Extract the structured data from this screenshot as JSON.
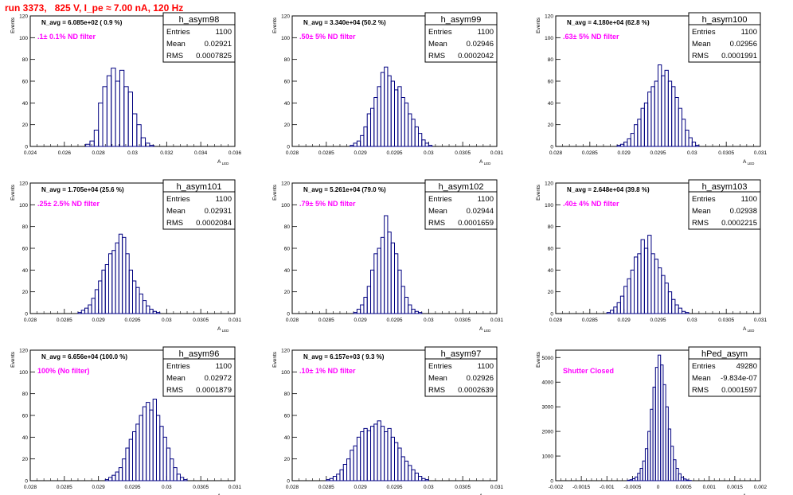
{
  "title": "run 3373,   825 V, I_pe ≈ 7.00 nA, 120 Hz",
  "ylabel": "Events",
  "xlabel": "A_{LED}",
  "stat_labels": [
    "Entries",
    "Mean",
    "RMS"
  ],
  "hist_color": "#000080",
  "note_color": "#ff00ff",
  "chart_data": [
    {
      "type": "bar",
      "name": "h_asym98",
      "navg": "N_avg = 6.085e+02 ( 0.9 %)",
      "note": ".1± 0.1% ND filter",
      "entries": "1100",
      "mean": "0.02921",
      "rms": "0.0007825",
      "xlim": [
        0.024,
        0.036
      ],
      "ylim": [
        0,
        120
      ],
      "xticks": [
        "0.024",
        "0.026",
        "0.028",
        "0.03",
        "0.032",
        "0.034",
        "0.036"
      ],
      "yticks": [
        "0",
        "20",
        "40",
        "60",
        "80",
        "100",
        "120"
      ],
      "x": [
        0.02725,
        0.0275,
        0.02775,
        0.028,
        0.02825,
        0.0285,
        0.02875,
        0.029,
        0.02925,
        0.0295,
        0.02975,
        0.03,
        0.03025,
        0.0305,
        0.03075,
        0.031
      ],
      "values": [
        2,
        5,
        15,
        40,
        55,
        65,
        72,
        60,
        70,
        55,
        50,
        30,
        20,
        8,
        3,
        1
      ]
    },
    {
      "type": "bar",
      "name": "h_asym99",
      "navg": "N_avg = 3.340e+04 (50.2 %)",
      "note": ".50± 5% ND filter",
      "entries": "1100",
      "mean": "0.02946",
      "rms": "0.0002042",
      "xlim": [
        0.028,
        0.031
      ],
      "ylim": [
        0,
        120
      ],
      "xticks": [
        "0.028",
        "0.0285",
        "0.029",
        "0.0295",
        "0.03",
        "0.0305",
        "0.031"
      ],
      "yticks": [
        "0",
        "20",
        "40",
        "60",
        "80",
        "100",
        "120"
      ],
      "x": [
        0.02885,
        0.0289,
        0.02895,
        0.029,
        0.02905,
        0.0291,
        0.02915,
        0.0292,
        0.02925,
        0.0293,
        0.02935,
        0.0294,
        0.02945,
        0.0295,
        0.02955,
        0.0296,
        0.02965,
        0.0297,
        0.02975,
        0.0298,
        0.02985,
        0.0299,
        0.02995,
        0.03
      ],
      "values": [
        1,
        3,
        5,
        10,
        18,
        30,
        35,
        45,
        55,
        68,
        73,
        65,
        60,
        52,
        55,
        45,
        40,
        30,
        25,
        18,
        12,
        6,
        3,
        1
      ]
    },
    {
      "type": "bar",
      "name": "h_asym100",
      "navg": "N_avg = 4.180e+04 (62.8 %)",
      "note": ".63± 5% ND filter",
      "entries": "1100",
      "mean": "0.02956",
      "rms": "0.0001991",
      "xlim": [
        0.028,
        0.031
      ],
      "ylim": [
        0,
        120
      ],
      "xticks": [
        "0.028",
        "0.0285",
        "0.029",
        "0.0295",
        "0.03",
        "0.0305",
        "0.031"
      ],
      "yticks": [
        "0",
        "20",
        "40",
        "60",
        "80",
        "100",
        "120"
      ],
      "x": [
        0.0289,
        0.02895,
        0.029,
        0.02905,
        0.0291,
        0.02915,
        0.0292,
        0.02925,
        0.0293,
        0.02935,
        0.0294,
        0.02945,
        0.0295,
        0.02955,
        0.0296,
        0.02965,
        0.0297,
        0.02975,
        0.0298,
        0.02985,
        0.0299,
        0.02995,
        0.03,
        0.03005
      ],
      "values": [
        1,
        2,
        4,
        7,
        12,
        20,
        25,
        35,
        40,
        50,
        55,
        60,
        75,
        65,
        70,
        60,
        55,
        45,
        35,
        25,
        15,
        8,
        4,
        1
      ]
    },
    {
      "type": "bar",
      "name": "h_asym101",
      "navg": "N_avg = 1.705e+04 (25.6 %)",
      "note": ".25± 2.5% ND filter",
      "entries": "1100",
      "mean": "0.02931",
      "rms": "0.0002084",
      "xlim": [
        0.028,
        0.031
      ],
      "ylim": [
        0,
        120
      ],
      "xticks": [
        "0.028",
        "0.0285",
        "0.029",
        "0.0295",
        "0.03",
        "0.0305",
        "0.031"
      ],
      "yticks": [
        "0",
        "20",
        "40",
        "60",
        "80",
        "100",
        "120"
      ],
      "x": [
        0.0287,
        0.02875,
        0.0288,
        0.02885,
        0.0289,
        0.02895,
        0.029,
        0.02905,
        0.0291,
        0.02915,
        0.0292,
        0.02925,
        0.0293,
        0.02935,
        0.0294,
        0.02945,
        0.0295,
        0.02955,
        0.0296,
        0.02965,
        0.0297,
        0.02975,
        0.0298,
        0.02985
      ],
      "values": [
        1,
        3,
        5,
        8,
        14,
        22,
        30,
        40,
        45,
        55,
        58,
        65,
        73,
        70,
        55,
        40,
        30,
        24,
        18,
        12,
        7,
        4,
        2,
        1
      ]
    },
    {
      "type": "bar",
      "name": "h_asym102",
      "navg": "N_avg = 5.261e+04 (79.0 %)",
      "note": ".79± 5% ND filter",
      "entries": "1100",
      "mean": "0.02944",
      "rms": "0.0001659",
      "xlim": [
        0.028,
        0.031
      ],
      "ylim": [
        0,
        120
      ],
      "xticks": [
        "0.028",
        "0.0285",
        "0.029",
        "0.0295",
        "0.03",
        "0.0305",
        "0.031"
      ],
      "yticks": [
        "0",
        "20",
        "40",
        "60",
        "80",
        "100",
        "120"
      ],
      "x": [
        0.0289,
        0.02895,
        0.029,
        0.02905,
        0.0291,
        0.02915,
        0.0292,
        0.02925,
        0.0293,
        0.02935,
        0.0294,
        0.02945,
        0.0295,
        0.02955,
        0.0296,
        0.02965,
        0.0297,
        0.02975,
        0.0298,
        0.02985
      ],
      "values": [
        1,
        4,
        8,
        15,
        25,
        40,
        55,
        60,
        70,
        90,
        75,
        65,
        55,
        40,
        25,
        15,
        8,
        4,
        2,
        1
      ]
    },
    {
      "type": "bar",
      "name": "h_asym103",
      "navg": "N_avg = 2.648e+04 (39.8 %)",
      "note": ".40± 4% ND filter",
      "entries": "1100",
      "mean": "0.02938",
      "rms": "0.0002215",
      "xlim": [
        0.028,
        0.031
      ],
      "ylim": [
        0,
        120
      ],
      "xticks": [
        "0.028",
        "0.0285",
        "0.029",
        "0.0295",
        "0.03",
        "0.0305",
        "0.031"
      ],
      "yticks": [
        "0",
        "20",
        "40",
        "60",
        "80",
        "100",
        "120"
      ],
      "x": [
        0.02875,
        0.0288,
        0.02885,
        0.0289,
        0.02895,
        0.029,
        0.02905,
        0.0291,
        0.02915,
        0.0292,
        0.02925,
        0.0293,
        0.02935,
        0.0294,
        0.02945,
        0.0295,
        0.02955,
        0.0296,
        0.02965,
        0.0297,
        0.02975,
        0.0298,
        0.02985,
        0.0299
      ],
      "values": [
        1,
        3,
        6,
        10,
        16,
        25,
        32,
        40,
        52,
        55,
        68,
        60,
        72,
        55,
        50,
        42,
        35,
        28,
        20,
        13,
        8,
        5,
        2,
        1
      ]
    },
    {
      "type": "bar",
      "name": "h_asym96",
      "navg": "N_avg = 6.656e+04 (100.0 %)",
      "note": "100% (No filter)",
      "entries": "1100",
      "mean": "0.02972",
      "rms": "0.0001879",
      "xlim": [
        0.028,
        0.031
      ],
      "ylim": [
        0,
        120
      ],
      "xticks": [
        "0.028",
        "0.0285",
        "0.029",
        "0.0295",
        "0.03",
        "0.0305",
        "0.031"
      ],
      "yticks": [
        "0",
        "20",
        "40",
        "60",
        "80",
        "100",
        "120"
      ],
      "x": [
        0.0291,
        0.02915,
        0.0292,
        0.02925,
        0.0293,
        0.02935,
        0.0294,
        0.02945,
        0.0295,
        0.02955,
        0.0296,
        0.02965,
        0.0297,
        0.02975,
        0.0298,
        0.02985,
        0.0299,
        0.02995,
        0.03,
        0.03005,
        0.0301,
        0.03015,
        0.0302,
        0.03025
      ],
      "values": [
        1,
        3,
        5,
        8,
        12,
        20,
        30,
        38,
        45,
        52,
        60,
        68,
        72,
        65,
        75,
        60,
        50,
        40,
        30,
        20,
        12,
        6,
        3,
        1
      ]
    },
    {
      "type": "bar",
      "name": "h_asym97",
      "navg": "N_avg = 6.157e+03 ( 9.3 %)",
      "note": ".10± 1% ND filter",
      "entries": "1100",
      "mean": "0.02926",
      "rms": "0.0002639",
      "xlim": [
        0.028,
        0.031
      ],
      "ylim": [
        0,
        120
      ],
      "xticks": [
        "0.028",
        "0.0285",
        "0.029",
        "0.0295",
        "0.03",
        "0.0305",
        "0.031"
      ],
      "yticks": [
        "0",
        "20",
        "40",
        "60",
        "80",
        "100",
        "120"
      ],
      "x": [
        0.0285,
        0.02855,
        0.0286,
        0.02865,
        0.0287,
        0.02875,
        0.0288,
        0.02885,
        0.0289,
        0.02895,
        0.029,
        0.02905,
        0.0291,
        0.02915,
        0.0292,
        0.02925,
        0.0293,
        0.02935,
        0.0294,
        0.02945,
        0.0295,
        0.02955,
        0.0296,
        0.02965,
        0.0297,
        0.02975,
        0.0298,
        0.02985,
        0.0299,
        0.02995
      ],
      "values": [
        1,
        2,
        4,
        6,
        10,
        15,
        20,
        28,
        32,
        40,
        45,
        48,
        46,
        50,
        52,
        55,
        50,
        45,
        48,
        40,
        35,
        30,
        22,
        18,
        14,
        10,
        7,
        4,
        2,
        1
      ]
    },
    {
      "type": "bar",
      "name": "hPed_asym",
      "navg": "",
      "note": "Shutter Closed",
      "entries": "49280",
      "mean": "-9.834e-07",
      "rms": "0.0001597",
      "xlim": [
        -0.002,
        0.002
      ],
      "ylim": [
        0,
        5300
      ],
      "xticks": [
        "-0.002",
        "-0.0015",
        "-0.001",
        "-0.0005",
        "0",
        "0.0005",
        "0.001",
        "0.0015",
        "0.002"
      ],
      "yticks": [
        "0",
        "1000",
        "2000",
        "3000",
        "4000",
        "5000"
      ],
      "x": [
        -0.0006,
        -0.00055,
        -0.0005,
        -0.00045,
        -0.0004,
        -0.00035,
        -0.0003,
        -0.00025,
        -0.0002,
        -0.00015,
        -0.0001,
        -5e-05,
        0,
        5e-05,
        0.0001,
        0.00015,
        0.0002,
        0.00025,
        0.0003,
        0.00035,
        0.0004,
        0.00045,
        0.0005,
        0.00055,
        0.0006
      ],
      "values": [
        20,
        40,
        80,
        150,
        300,
        500,
        800,
        1300,
        2000,
        2900,
        3800,
        4600,
        5100,
        4700,
        3900,
        3000,
        2100,
        1400,
        850,
        500,
        280,
        140,
        70,
        30,
        10
      ]
    }
  ]
}
